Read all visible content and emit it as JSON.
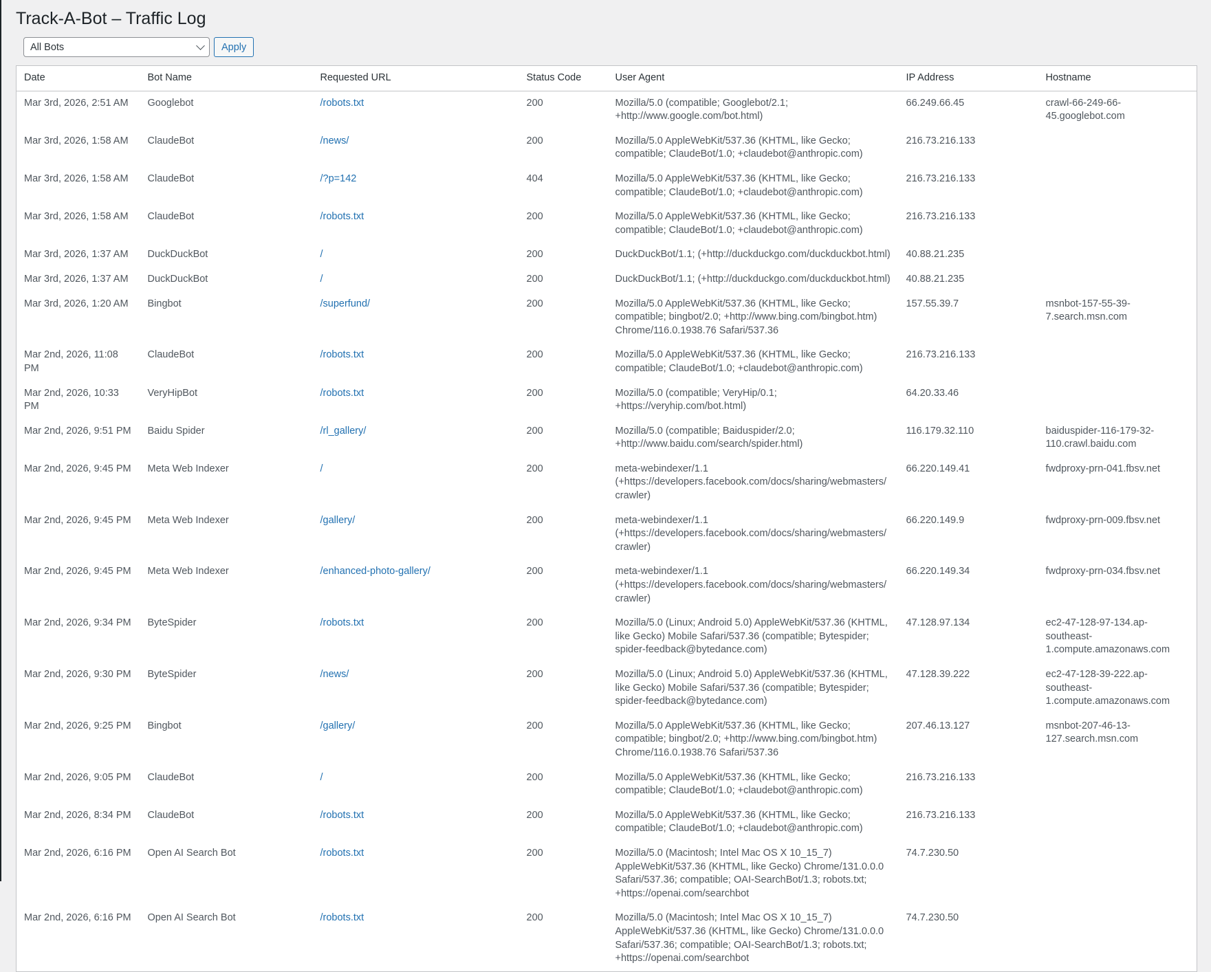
{
  "page": {
    "title": "Track-A-Bot – Traffic Log"
  },
  "filters": {
    "bot_select_value": "All Bots",
    "apply_label": "Apply"
  },
  "colors": {
    "link": "#2271b1",
    "background": "#f0f0f1"
  },
  "table": {
    "columns": [
      "Date",
      "Bot Name",
      "Requested URL",
      "Status Code",
      "User Agent",
      "IP Address",
      "Hostname"
    ],
    "rows": [
      [
        "Mar 3rd, 2026, 2:51 AM",
        "Googlebot",
        "/robots.txt",
        "200",
        "Mozilla/5.0 (compatible; Googlebot/2.1; +http://www.google.com/bot.html)",
        "66.249.66.45",
        "crawl-66-249-66-45.googlebot.com"
      ],
      [
        "Mar 3rd, 2026, 1:58 AM",
        "ClaudeBot",
        "/news/",
        "200",
        "Mozilla/5.0 AppleWebKit/537.36 (KHTML, like Gecko; compatible; ClaudeBot/1.0; +claudebot@anthropic.com)",
        "216.73.216.133",
        ""
      ],
      [
        "Mar 3rd, 2026, 1:58 AM",
        "ClaudeBot",
        "/?p=142",
        "404",
        "Mozilla/5.0 AppleWebKit/537.36 (KHTML, like Gecko; compatible; ClaudeBot/1.0; +claudebot@anthropic.com)",
        "216.73.216.133",
        ""
      ],
      [
        "Mar 3rd, 2026, 1:58 AM",
        "ClaudeBot",
        "/robots.txt",
        "200",
        "Mozilla/5.0 AppleWebKit/537.36 (KHTML, like Gecko; compatible; ClaudeBot/1.0; +claudebot@anthropic.com)",
        "216.73.216.133",
        ""
      ],
      [
        "Mar 3rd, 2026, 1:37 AM",
        "DuckDuckBot",
        "/",
        "200",
        "DuckDuckBot/1.1; (+http://duckduckgo.com/duckduckbot.html)",
        "40.88.21.235",
        ""
      ],
      [
        "Mar 3rd, 2026, 1:37 AM",
        "DuckDuckBot",
        "/",
        "200",
        "DuckDuckBot/1.1; (+http://duckduckgo.com/duckduckbot.html)",
        "40.88.21.235",
        ""
      ],
      [
        "Mar 3rd, 2026, 1:20 AM",
        "Bingbot",
        "/superfund/",
        "200",
        "Mozilla/5.0 AppleWebKit/537.36 (KHTML, like Gecko; compatible; bingbot/2.0; +http://www.bing.com/bingbot.htm) Chrome/116.0.1938.76 Safari/537.36",
        "157.55.39.7",
        "msnbot-157-55-39-7.search.msn.com"
      ],
      [
        "Mar 2nd, 2026, 11:08 PM",
        "ClaudeBot",
        "/robots.txt",
        "200",
        "Mozilla/5.0 AppleWebKit/537.36 (KHTML, like Gecko; compatible; ClaudeBot/1.0; +claudebot@anthropic.com)",
        "216.73.216.133",
        ""
      ],
      [
        "Mar 2nd, 2026, 10:33 PM",
        "VeryHipBot",
        "/robots.txt",
        "200",
        "Mozilla/5.0 (compatible; VeryHip/0.1; +https://veryhip.com/bot.html)",
        "64.20.33.46",
        ""
      ],
      [
        "Mar 2nd, 2026, 9:51 PM",
        "Baidu Spider",
        "/rl_gallery/",
        "200",
        "Mozilla/5.0 (compatible; Baiduspider/2.0; +http://www.baidu.com/search/spider.html)",
        "116.179.32.110",
        "baiduspider-116-179-32-110.crawl.baidu.com"
      ],
      [
        "Mar 2nd, 2026, 9:45 PM",
        "Meta Web Indexer",
        "/",
        "200",
        "meta-webindexer/1.1 (+https://developers.facebook.com/docs/sharing/webmasters/crawler)",
        "66.220.149.41",
        "fwdproxy-prn-041.fbsv.net"
      ],
      [
        "Mar 2nd, 2026, 9:45 PM",
        "Meta Web Indexer",
        "/gallery/",
        "200",
        "meta-webindexer/1.1 (+https://developers.facebook.com/docs/sharing/webmasters/crawler)",
        "66.220.149.9",
        "fwdproxy-prn-009.fbsv.net"
      ],
      [
        "Mar 2nd, 2026, 9:45 PM",
        "Meta Web Indexer",
        "/enhanced-photo-gallery/",
        "200",
        "meta-webindexer/1.1 (+https://developers.facebook.com/docs/sharing/webmasters/crawler)",
        "66.220.149.34",
        "fwdproxy-prn-034.fbsv.net"
      ],
      [
        "Mar 2nd, 2026, 9:34 PM",
        "ByteSpider",
        "/robots.txt",
        "200",
        "Mozilla/5.0 (Linux; Android 5.0) AppleWebKit/537.36 (KHTML, like Gecko) Mobile Safari/537.36 (compatible; Bytespider; spider-feedback@bytedance.com)",
        "47.128.97.134",
        "ec2-47-128-97-134.ap-southeast-1.compute.amazonaws.com"
      ],
      [
        "Mar 2nd, 2026, 9:30 PM",
        "ByteSpider",
        "/news/",
        "200",
        "Mozilla/5.0 (Linux; Android 5.0) AppleWebKit/537.36 (KHTML, like Gecko) Mobile Safari/537.36 (compatible; Bytespider; spider-feedback@bytedance.com)",
        "47.128.39.222",
        "ec2-47-128-39-222.ap-southeast-1.compute.amazonaws.com"
      ],
      [
        "Mar 2nd, 2026, 9:25 PM",
        "Bingbot",
        "/gallery/",
        "200",
        "Mozilla/5.0 AppleWebKit/537.36 (KHTML, like Gecko; compatible; bingbot/2.0; +http://www.bing.com/bingbot.htm) Chrome/116.0.1938.76 Safari/537.36",
        "207.46.13.127",
        "msnbot-207-46-13-127.search.msn.com"
      ],
      [
        "Mar 2nd, 2026, 9:05 PM",
        "ClaudeBot",
        "/",
        "200",
        "Mozilla/5.0 AppleWebKit/537.36 (KHTML, like Gecko; compatible; ClaudeBot/1.0; +claudebot@anthropic.com)",
        "216.73.216.133",
        ""
      ],
      [
        "Mar 2nd, 2026, 8:34 PM",
        "ClaudeBot",
        "/robots.txt",
        "200",
        "Mozilla/5.0 AppleWebKit/537.36 (KHTML, like Gecko; compatible; ClaudeBot/1.0; +claudebot@anthropic.com)",
        "216.73.216.133",
        ""
      ],
      [
        "Mar 2nd, 2026, 6:16 PM",
        "Open AI Search Bot",
        "/robots.txt",
        "200",
        "Mozilla/5.0 (Macintosh; Intel Mac OS X 10_15_7) AppleWebKit/537.36 (KHTML, like Gecko) Chrome/131.0.0.0 Safari/537.36; compatible; OAI-SearchBot/1.3; robots.txt; +https://openai.com/searchbot",
        "74.7.230.50",
        ""
      ],
      [
        "Mar 2nd, 2026, 6:16 PM",
        "Open AI Search Bot",
        "/robots.txt",
        "200",
        "Mozilla/5.0 (Macintosh; Intel Mac OS X 10_15_7) AppleWebKit/537.36 (KHTML, like Gecko) Chrome/131.0.0.0 Safari/537.36; compatible; OAI-SearchBot/1.3; robots.txt; +https://openai.com/searchbot",
        "74.7.230.50",
        ""
      ]
    ]
  }
}
